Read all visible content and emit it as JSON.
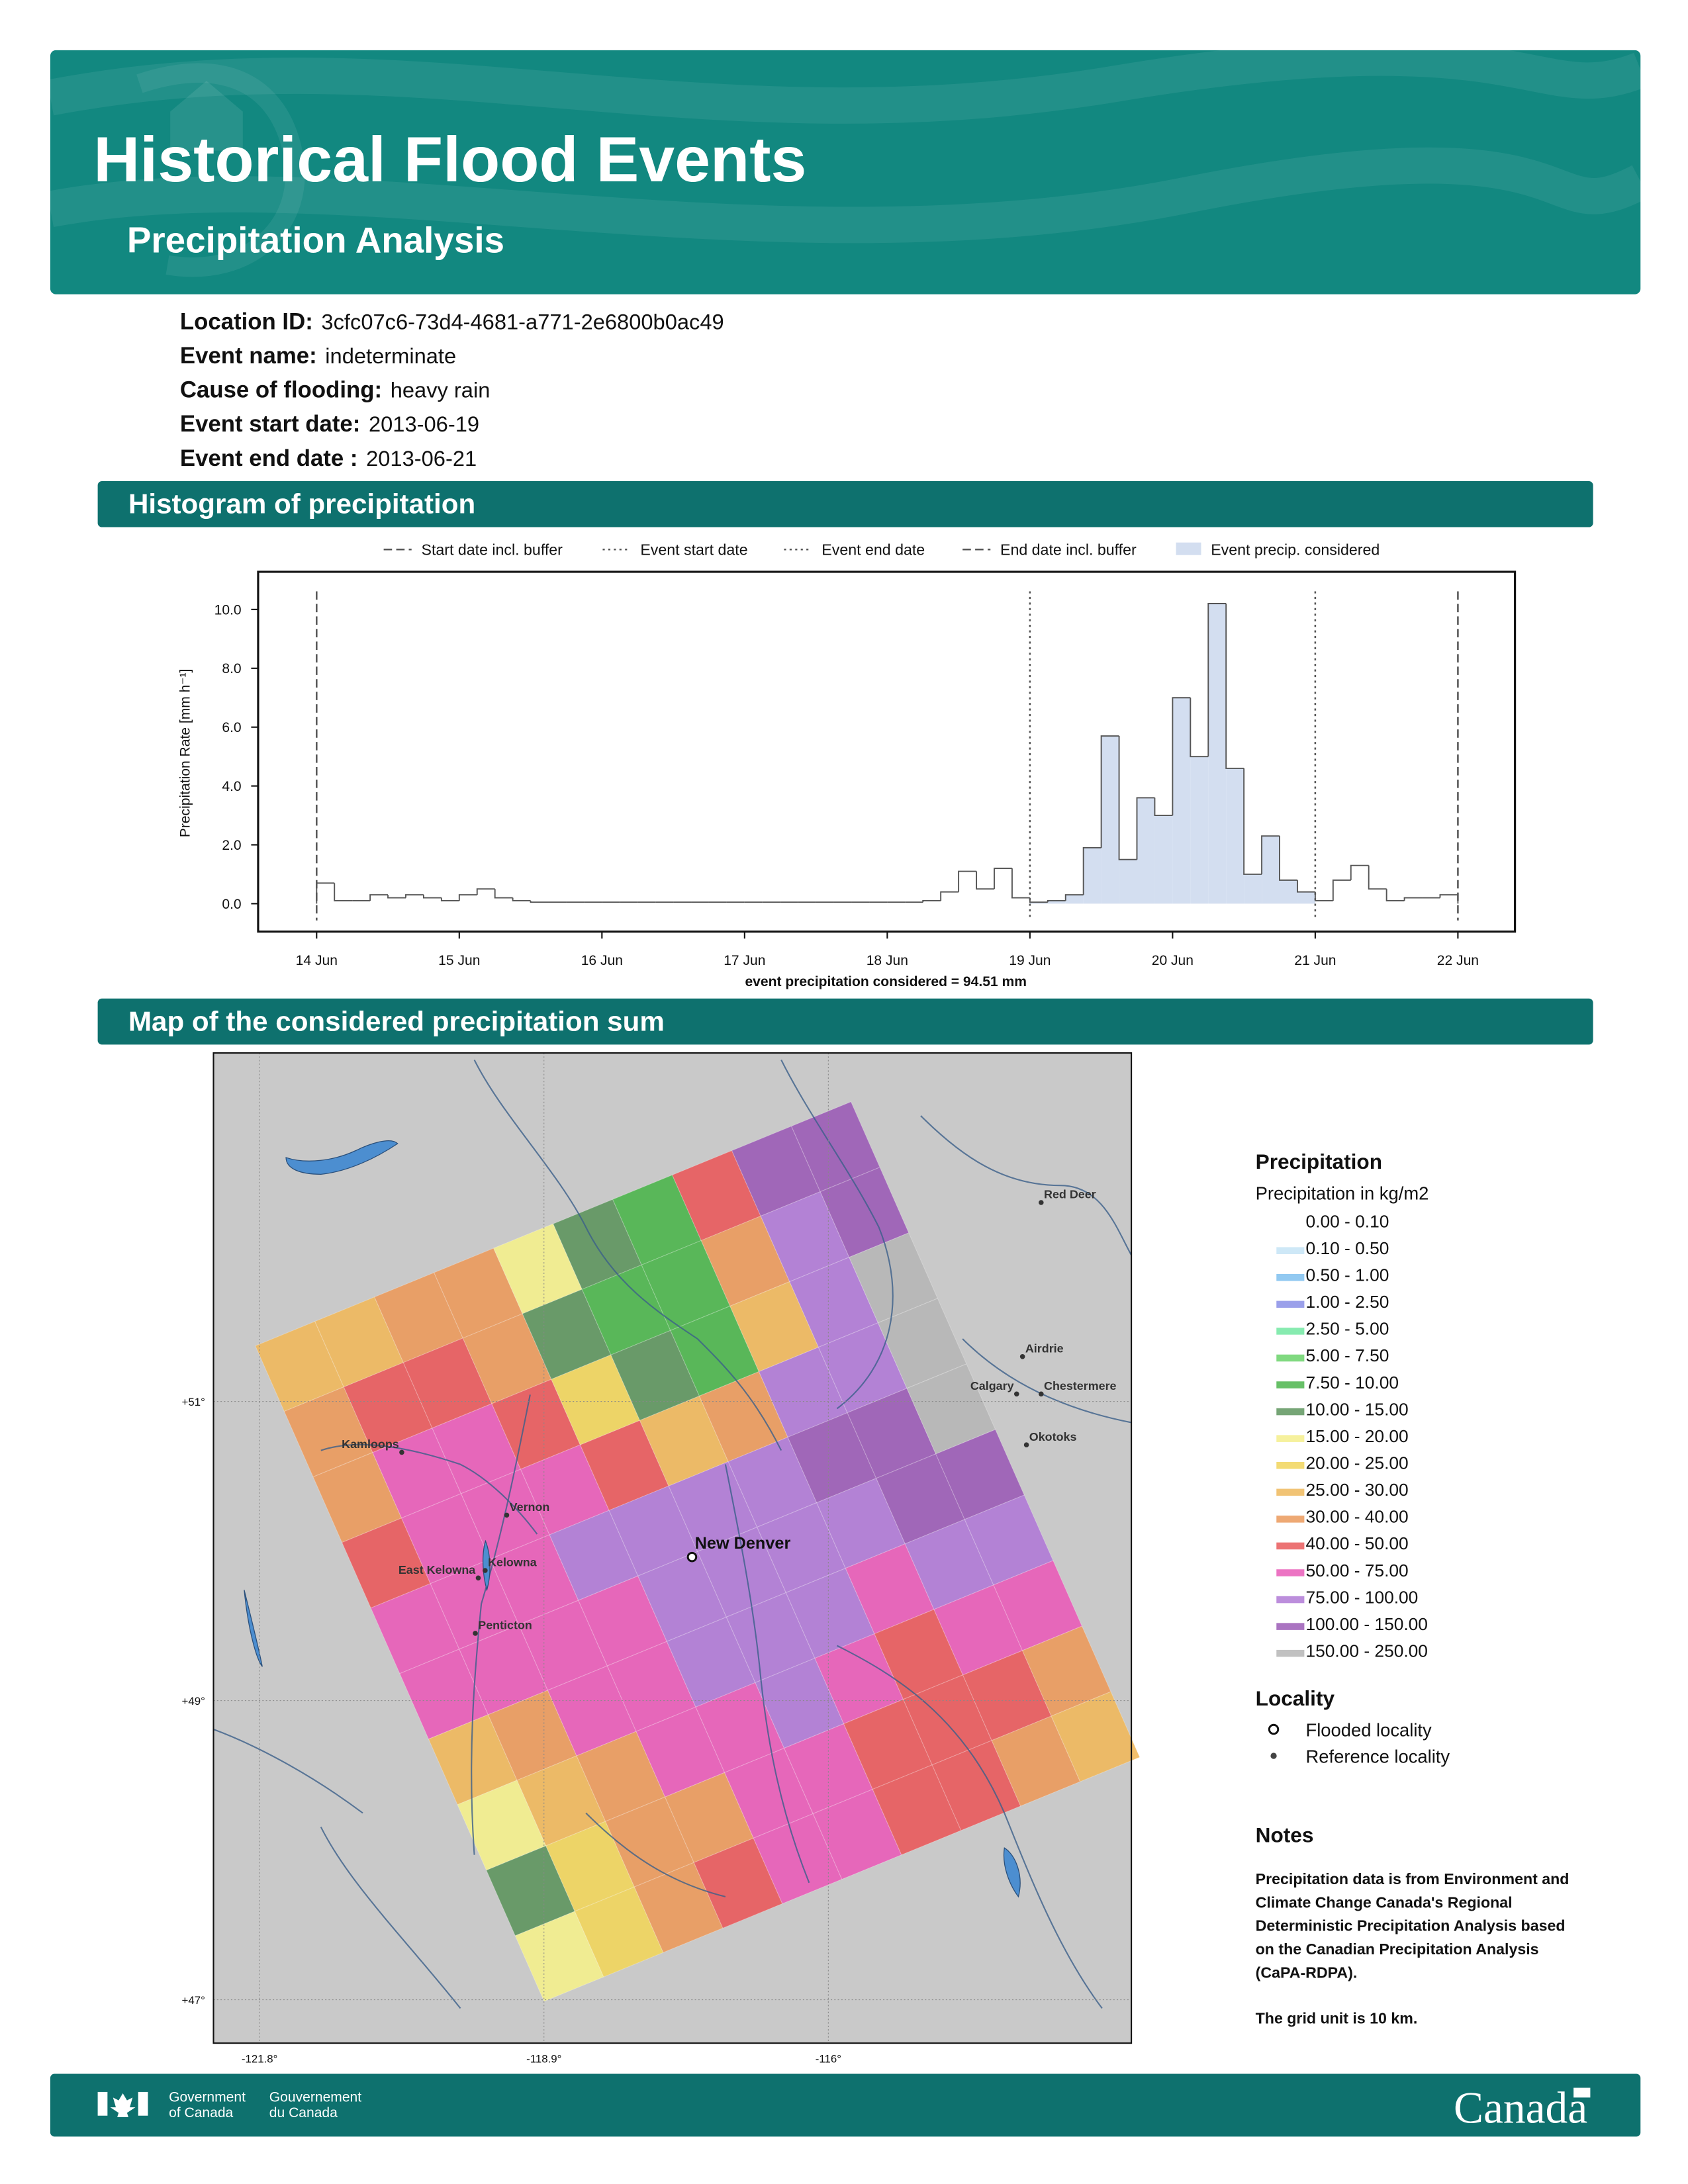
{
  "header": {
    "title": "Historical Flood Events",
    "subtitle": "Precipitation Analysis"
  },
  "info": [
    {
      "label": "Location ID:",
      "value": "3cfc07c6-73d4-4681-a771-2e6800b0ac49"
    },
    {
      "label": "Event name:",
      "value": "indeterminate"
    },
    {
      "label": "Cause of flooding:",
      "value": "heavy rain"
    },
    {
      "label": "Event start date:",
      "value": "2013-06-19"
    },
    {
      "label": "Event end date :",
      "value": "2013-06-21"
    }
  ],
  "sections": [
    "Histogram of precipitation",
    "Map of the considered precipitation sum"
  ],
  "chart_data": {
    "type": "histogram",
    "ylabel": "Precipitation Rate [mm h⁻¹]",
    "note": "event precipitation considered = 94.51 mm",
    "fill_label": "Event precip. considered",
    "fill_color": "#d3def0",
    "vlines": [
      {
        "name": "Start date incl. buffer",
        "x": 0,
        "style": "dashed"
      },
      {
        "name": "Event start date",
        "x": 5,
        "style": "dotted"
      },
      {
        "name": "Event end date",
        "x": 7,
        "style": "dotted"
      },
      {
        "name": "End date incl. buffer",
        "x": 8,
        "style": "dashed"
      }
    ],
    "xlim": [
      -0.41,
      8.4
    ],
    "xticks": [
      {
        "value": 0,
        "label": "14 Jun"
      },
      {
        "value": 1,
        "label": "15 Jun"
      },
      {
        "value": 2,
        "label": "16 Jun"
      },
      {
        "value": 3,
        "label": "17 Jun"
      },
      {
        "value": 4,
        "label": "18 Jun"
      },
      {
        "value": 5,
        "label": "19 Jun"
      },
      {
        "value": 6,
        "label": "20 Jun"
      },
      {
        "value": 7,
        "label": "21 Jun"
      },
      {
        "value": 8,
        "label": "22 Jun"
      }
    ],
    "ylim": [
      -0.95,
      11.28
    ],
    "yticks": [
      {
        "value": 0,
        "label": "0.0"
      },
      {
        "value": 2,
        "label": "2.0"
      },
      {
        "value": 4,
        "label": "4.0"
      },
      {
        "value": 6,
        "label": "6.0"
      },
      {
        "value": 8,
        "label": "8.0"
      },
      {
        "value": 10,
        "label": "10.0"
      }
    ],
    "bins": [
      0,
      0.125,
      0.25,
      0.375,
      0.5,
      0.625,
      0.75,
      0.875,
      1,
      1.125,
      1.25,
      1.375,
      1.5,
      1.625,
      1.75,
      1.875,
      2,
      2.125,
      2.25,
      2.375,
      2.5,
      2.625,
      2.75,
      2.875,
      3,
      3.125,
      3.25,
      3.375,
      3.5,
      3.625,
      3.75,
      3.875,
      4,
      4.125,
      4.25,
      4.375,
      4.5,
      4.625,
      4.75,
      4.875,
      5,
      5.125,
      5.25,
      5.375,
      5.5,
      5.625,
      5.75,
      5.875,
      6,
      6.125,
      6.25,
      6.375,
      6.5,
      6.625,
      6.75,
      6.875,
      7,
      7.125,
      7.25,
      7.375,
      7.5,
      7.625,
      7.75,
      7.875,
      8
    ],
    "values": [
      0.7,
      0.1,
      0.1,
      0.3,
      0.2,
      0.3,
      0.2,
      0.1,
      0.3,
      0.5,
      0.2,
      0.1,
      0.05,
      0.05,
      0.05,
      0.05,
      0.05,
      0.05,
      0.05,
      0.05,
      0.05,
      0.05,
      0.05,
      0.05,
      0.05,
      0.05,
      0.05,
      0.05,
      0.05,
      0.05,
      0.05,
      0.05,
      0.05,
      0.05,
      0.1,
      0.4,
      1.1,
      0.5,
      1.2,
      0.2,
      0.05,
      0.1,
      0.3,
      1.9,
      5.7,
      1.5,
      3.6,
      3.0,
      7.0,
      5.0,
      10.2,
      4.6,
      1.0,
      2.3,
      0.8,
      0.4,
      0.1,
      0.8,
      1.3,
      0.5,
      0.1,
      0.2,
      0.2,
      0.3
    ],
    "color": "#555555"
  },
  "map": {
    "xlim": [
      -122.27,
      -112.91
    ],
    "ylim": [
      46.71,
      53.33
    ],
    "xticks": [
      {
        "value": -121.8,
        "label": "-121.8°"
      },
      {
        "value": -118.9,
        "label": "-118.9°"
      },
      {
        "value": -116,
        "label": "-116°"
      }
    ],
    "yticks": [
      {
        "value": 51,
        "label": "+51°"
      },
      {
        "value": 49,
        "label": "+49°"
      },
      {
        "value": 47,
        "label": "+47°"
      }
    ],
    "grid": [
      [
        28,
        30,
        35,
        40,
        20,
        12,
        8,
        45,
        120,
        110
      ],
      [
        35,
        45,
        50,
        35,
        15,
        8,
        10,
        40,
        100,
        150
      ],
      [
        40,
        55,
        60,
        45,
        25,
        12,
        10,
        30,
        90,
        160
      ],
      [
        45,
        60,
        60,
        55,
        45,
        30,
        40,
        80,
        100,
        170
      ],
      [
        55,
        60,
        60,
        80,
        90,
        85,
        100,
        120,
        110,
        160
      ],
      [
        55,
        60,
        60,
        70,
        90,
        85,
        90,
        100,
        110,
        120
      ],
      [
        30,
        40,
        55,
        60,
        80,
        85,
        80,
        70,
        90,
        100
      ],
      [
        18,
        30,
        40,
        55,
        60,
        85,
        70,
        50,
        60,
        60
      ],
      [
        12,
        25,
        35,
        40,
        55,
        60,
        50,
        45,
        50,
        40
      ],
      [
        20,
        25,
        35,
        45,
        55,
        60,
        50,
        45,
        40,
        30
      ]
    ],
    "flooded": [
      {
        "name": "New Denver",
        "lon": -117.39,
        "lat": 49.96
      }
    ],
    "reference": [
      {
        "name": "Kamloops",
        "lon": -120.35,
        "lat": 50.66
      },
      {
        "name": "Vernon",
        "lon": -119.28,
        "lat": 50.24
      },
      {
        "name": "Kelowna",
        "lon": -119.5,
        "lat": 49.87
      },
      {
        "name": "East Kelowna",
        "lon": -119.57,
        "lat": 49.82
      },
      {
        "name": "Penticton",
        "lon": -119.6,
        "lat": 49.45
      },
      {
        "name": "Red Deer",
        "lon": -113.83,
        "lat": 52.33
      },
      {
        "name": "Airdrie",
        "lon": -114.02,
        "lat": 51.3
      },
      {
        "name": "Calgary",
        "lon": -114.08,
        "lat": 51.05
      },
      {
        "name": "Chestermere",
        "lon": -113.83,
        "lat": 51.05
      },
      {
        "name": "Okotoks",
        "lon": -113.98,
        "lat": 50.71
      }
    ]
  },
  "legend": {
    "title": "Precipitation",
    "subtitle": "Precipitation in kg/m2",
    "classes": [
      {
        "label": "0.00 - 0.10",
        "max": 0.1,
        "color": "#ffffff"
      },
      {
        "label": "0.10 - 0.50",
        "max": 0.5,
        "color": "#c6e4f6"
      },
      {
        "label": "0.50 - 1.00",
        "max": 1,
        "color": "#7fc0ee"
      },
      {
        "label": "1.00 - 2.50",
        "max": 2.5,
        "color": "#8a8fe6"
      },
      {
        "label": "2.50 - 5.00",
        "max": 5,
        "color": "#72e8a2"
      },
      {
        "label": "5.00 - 7.50",
        "max": 7.5,
        "color": "#6ad26a"
      },
      {
        "label": "7.50 - 10.00",
        "max": 10,
        "color": "#4cb54c"
      },
      {
        "label": "10.00 - 15.00",
        "max": 15,
        "color": "#5e955e"
      },
      {
        "label": "15.00 - 20.00",
        "max": 20,
        "color": "#f4ef8c"
      },
      {
        "label": "20.00 - 25.00",
        "max": 25,
        "color": "#f1d55c"
      },
      {
        "label": "25.00 - 30.00",
        "max": 30,
        "color": "#efb85c"
      },
      {
        "label": "30.00 - 40.00",
        "max": 40,
        "color": "#eb9a5c"
      },
      {
        "label": "40.00 - 50.00",
        "max": 50,
        "color": "#e95a5c"
      },
      {
        "label": "50.00 - 75.00",
        "max": 75,
        "color": "#e95cb8"
      },
      {
        "label": "75.00 - 100.00",
        "max": 100,
        "color": "#b07ad6"
      },
      {
        "label": "100.00 - 150.00",
        "max": 150,
        "color": "#9b5cb6"
      },
      {
        "label": "150.00 - 250.00",
        "max": 250,
        "color": "#b6b6b6"
      }
    ],
    "locality_title": "Locality",
    "locality": [
      "Flooded locality",
      "Reference locality"
    ]
  },
  "notes": {
    "title": "Notes",
    "lines": [
      "Precipitation data is from Environment and",
      "Climate Change Canada's Regional",
      "Deterministic Precipitation Analysis based",
      "on the Canadian Precipitation Analysis",
      "(CaPA-RDPA)."
    ],
    "grid_note": "The grid unit is 10 km."
  },
  "footer": {
    "en": [
      "Government",
      "of Canada"
    ],
    "fr": [
      "Gouvernement",
      "du Canada"
    ],
    "wordmark": "Canada"
  }
}
